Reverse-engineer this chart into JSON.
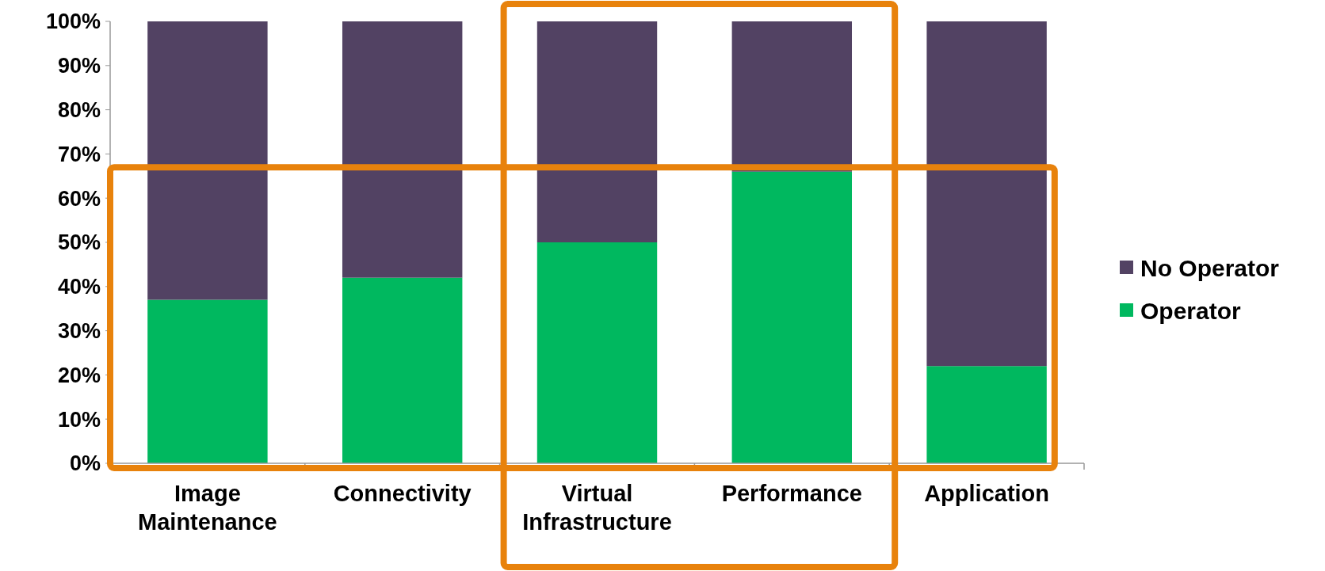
{
  "chart_data": {
    "type": "bar",
    "stacked": true,
    "categories": [
      "Image Maintenance",
      "Connectivity",
      "Virtual Infrastructure",
      "Performance",
      "Application"
    ],
    "series": [
      {
        "name": "Operator",
        "color": "#00b85f",
        "values": [
          37,
          42,
          50,
          66,
          22
        ]
      },
      {
        "name": "No Operator",
        "color": "#524263",
        "values": [
          63,
          58,
          50,
          34,
          78
        ]
      }
    ],
    "ylim": [
      0,
      100
    ],
    "yticks": [
      {
        "value": 0,
        "label": "0%"
      },
      {
        "value": 10,
        "label": "10%"
      },
      {
        "value": 20,
        "label": "20%"
      },
      {
        "value": 30,
        "label": "30%"
      },
      {
        "value": 40,
        "label": "40%"
      },
      {
        "value": 50,
        "label": "50%"
      },
      {
        "value": 60,
        "label": "60%"
      },
      {
        "value": 70,
        "label": "70%"
      },
      {
        "value": 80,
        "label": "80%"
      },
      {
        "value": 90,
        "label": "90%"
      },
      {
        "value": 100,
        "label": "100%"
      }
    ],
    "grid": false,
    "legend": "right"
  }
}
